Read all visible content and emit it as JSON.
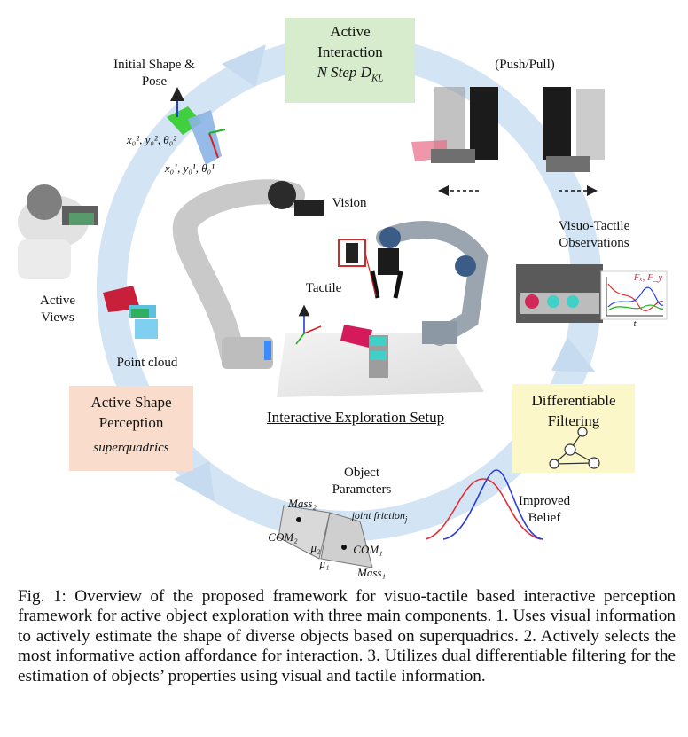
{
  "figure": {
    "boxes": {
      "active_interaction": {
        "line1": "Active",
        "line2": "Interaction",
        "line3": "N Step D",
        "line3_sub": "KL"
      },
      "differentiable_filtering": {
        "line1": "Differentiable",
        "line2": "Filtering"
      },
      "active_shape_perception": {
        "line1": "Active Shape",
        "line2": "Perception",
        "line3": "superquadrics"
      }
    },
    "labels": {
      "initial_shape_line1": "Initial Shape &",
      "initial_shape_line2": "Pose",
      "push_pull": "(Push/Pull)",
      "vision": "Vision",
      "tactile": "Tactile",
      "visuo_tactile_line1": "Visuo-Tactile",
      "visuo_tactile_line2": "Observations",
      "active_views_line1": "Active",
      "active_views_line2": "Views",
      "point_cloud": "Point cloud",
      "setup_title": "Interactive Exploration Setup",
      "object_params_line1": "Object",
      "object_params_line2": "Parameters",
      "improved_belief_line1": "Improved",
      "improved_belief_line2": "Belief",
      "pose2": "x₀², y₀², θ₀²",
      "pose1": "x₀¹, y₀¹, θ₀¹",
      "mass2": "Mass₂",
      "com2": "COM₂",
      "mu2": "μ₂",
      "mu1": "μ₁",
      "com1": "COM₁",
      "mass1": "Mass₁",
      "joint_friction": "joint friction",
      "joint_friction_sub": "j",
      "force_legend": "Fₓ, F_y",
      "time_axis": "t"
    },
    "colors": {
      "ring": "#d3e4f4",
      "active_interaction_bg": "#d7eccc",
      "filtering_bg": "#fbf7c8",
      "shape_bg": "#f9dccb",
      "belief_red": "#e0303a",
      "belief_blue": "#2b3fd8"
    }
  },
  "caption": "Fig. 1: Overview of the proposed framework for visuo-tactile based interactive perception framework for active object exploration with three main components. 1. Uses visual information to actively estimate the shape of diverse objects based on superquadrics. 2. Actively selects the most informative action affordance for interaction. 3. Utilizes dual differentiable filtering for the estimation of objects’ properties using visual and tactile information."
}
